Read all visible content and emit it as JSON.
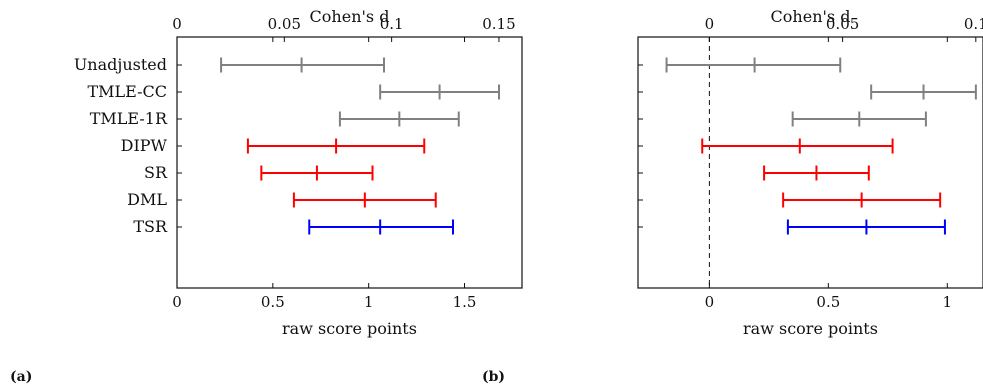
{
  "chart_data": [
    {
      "type": "interval",
      "panel_label": "(a)",
      "categories": [
        "Unadjusted",
        "TMLE-CC",
        "TMLE-1R",
        "DIPW",
        "SR",
        "DML",
        "TSR"
      ],
      "category_colors": [
        "#808080",
        "#808080",
        "#808080",
        "#ff0000",
        "#ff0000",
        "#ff0000",
        "#0000ff"
      ],
      "intervals": [
        {
          "lower": 0.23,
          "estimate": 0.65,
          "upper": 1.08
        },
        {
          "lower": 1.06,
          "estimate": 1.37,
          "upper": 1.68
        },
        {
          "lower": 0.85,
          "estimate": 1.16,
          "upper": 1.47
        },
        {
          "lower": 0.37,
          "estimate": 0.83,
          "upper": 1.29
        },
        {
          "lower": 0.44,
          "estimate": 0.73,
          "upper": 1.02
        },
        {
          "lower": 0.61,
          "estimate": 0.98,
          "upper": 1.35
        },
        {
          "lower": 0.69,
          "estimate": 1.06,
          "upper": 1.44
        }
      ],
      "xlabel": "raw score points",
      "xlim": [
        0,
        1.8
      ],
      "xticks": [
        0,
        0.5,
        1,
        1.5
      ],
      "xtick_labels": [
        "0",
        "0.5",
        "1",
        "1.5"
      ],
      "top_axis_label": "Cohen's d",
      "top_xticks": [
        0,
        0.05,
        0.1,
        0.15
      ],
      "top_xtick_labels": [
        "0",
        "0.05",
        "0.1",
        "0.15"
      ],
      "top_axis_scale": 0.0893,
      "zero_line": false
    },
    {
      "type": "interval",
      "panel_label": "(b)",
      "categories": [
        "Unadjusted",
        "TMLE-CC",
        "TMLE-1R",
        "DIPW",
        "SR",
        "DML",
        "TSR"
      ],
      "category_colors": [
        "#808080",
        "#808080",
        "#808080",
        "#ff0000",
        "#ff0000",
        "#ff0000",
        "#0000ff"
      ],
      "intervals": [
        {
          "lower": -0.18,
          "estimate": 0.19,
          "upper": 0.55
        },
        {
          "lower": 0.68,
          "estimate": 0.9,
          "upper": 1.12
        },
        {
          "lower": 0.35,
          "estimate": 0.63,
          "upper": 0.91
        },
        {
          "lower": -0.03,
          "estimate": 0.38,
          "upper": 0.77
        },
        {
          "lower": 0.23,
          "estimate": 0.45,
          "upper": 0.67
        },
        {
          "lower": 0.31,
          "estimate": 0.64,
          "upper": 0.97
        },
        {
          "lower": 0.33,
          "estimate": 0.66,
          "upper": 0.99
        }
      ],
      "xlabel": "raw score points",
      "xlim": [
        -0.3,
        1.15
      ],
      "xticks": [
        0,
        0.5,
        1
      ],
      "xtick_labels": [
        "0",
        "0.5",
        "1"
      ],
      "top_axis_label": "Cohen's d",
      "top_xticks": [
        0,
        0.05,
        0.1
      ],
      "top_xtick_labels": [
        "0",
        "0.05",
        "0.1"
      ],
      "top_axis_scale": 0.0893,
      "zero_line": true
    }
  ]
}
